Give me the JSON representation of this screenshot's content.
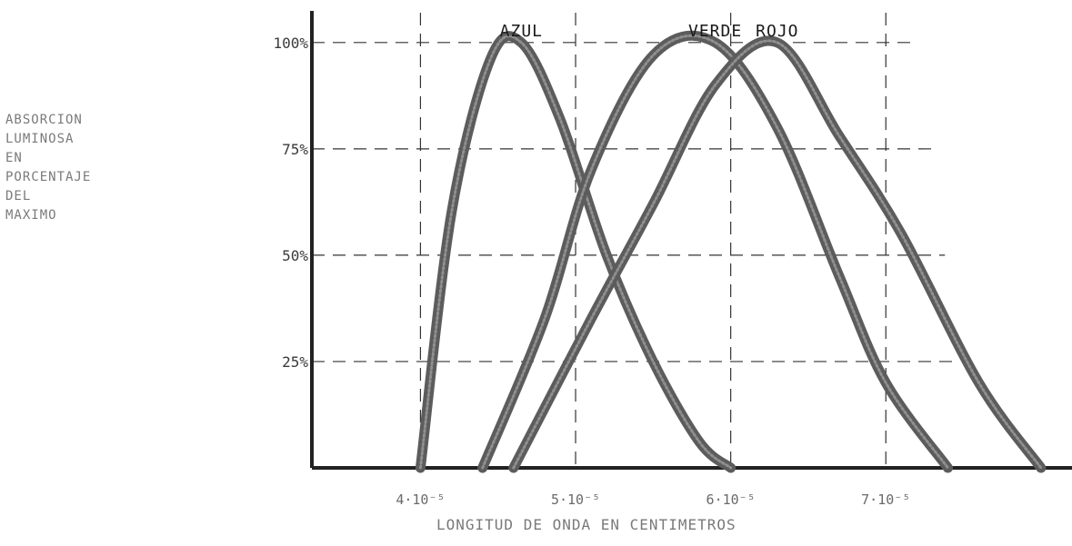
{
  "chart_data": {
    "type": "line",
    "title": "",
    "ylabel": "ABSORCION\nLUMINOSA\nEN\nPORCENTAJE\nDEL\nMAXIMO",
    "xlabel": "LONGITUD DE ONDA EN CENTIMETROS",
    "x_ticks": [
      "4·10⁻⁵",
      "5·10⁻⁵",
      "6·10⁻⁵",
      "7·10⁻⁵"
    ],
    "x_tick_values": [
      4,
      5,
      6,
      7
    ],
    "y_ticks": [
      "25%",
      "50%",
      "75%",
      "100%"
    ],
    "y_tick_values": [
      25,
      50,
      75,
      100
    ],
    "xlim": [
      3.3,
      8.2
    ],
    "ylim": [
      0,
      110
    ],
    "grid": true,
    "legend": "labels above curve peaks",
    "series": [
      {
        "name": "AZUL",
        "color": "#4a4a4a",
        "x": [
          4.0,
          4.2,
          4.45,
          4.65,
          4.9,
          5.2,
          5.5,
          5.8,
          6.0
        ],
        "y": [
          0,
          60,
          96,
          100,
          82,
          50,
          25,
          6,
          0
        ]
      },
      {
        "name": "VERDE",
        "color": "#4a4a4a",
        "x": [
          4.4,
          4.8,
          5.1,
          5.5,
          5.9,
          6.3,
          6.7,
          7.0,
          7.4
        ],
        "y": [
          0,
          35,
          70,
          97,
          100,
          80,
          45,
          20,
          0
        ]
      },
      {
        "name": "ROJO",
        "color": "#4a4a4a",
        "x": [
          4.6,
          5.1,
          5.5,
          5.9,
          6.3,
          6.7,
          7.1,
          7.6,
          8.0
        ],
        "y": [
          0,
          35,
          62,
          90,
          100,
          78,
          55,
          20,
          0
        ]
      }
    ]
  }
}
